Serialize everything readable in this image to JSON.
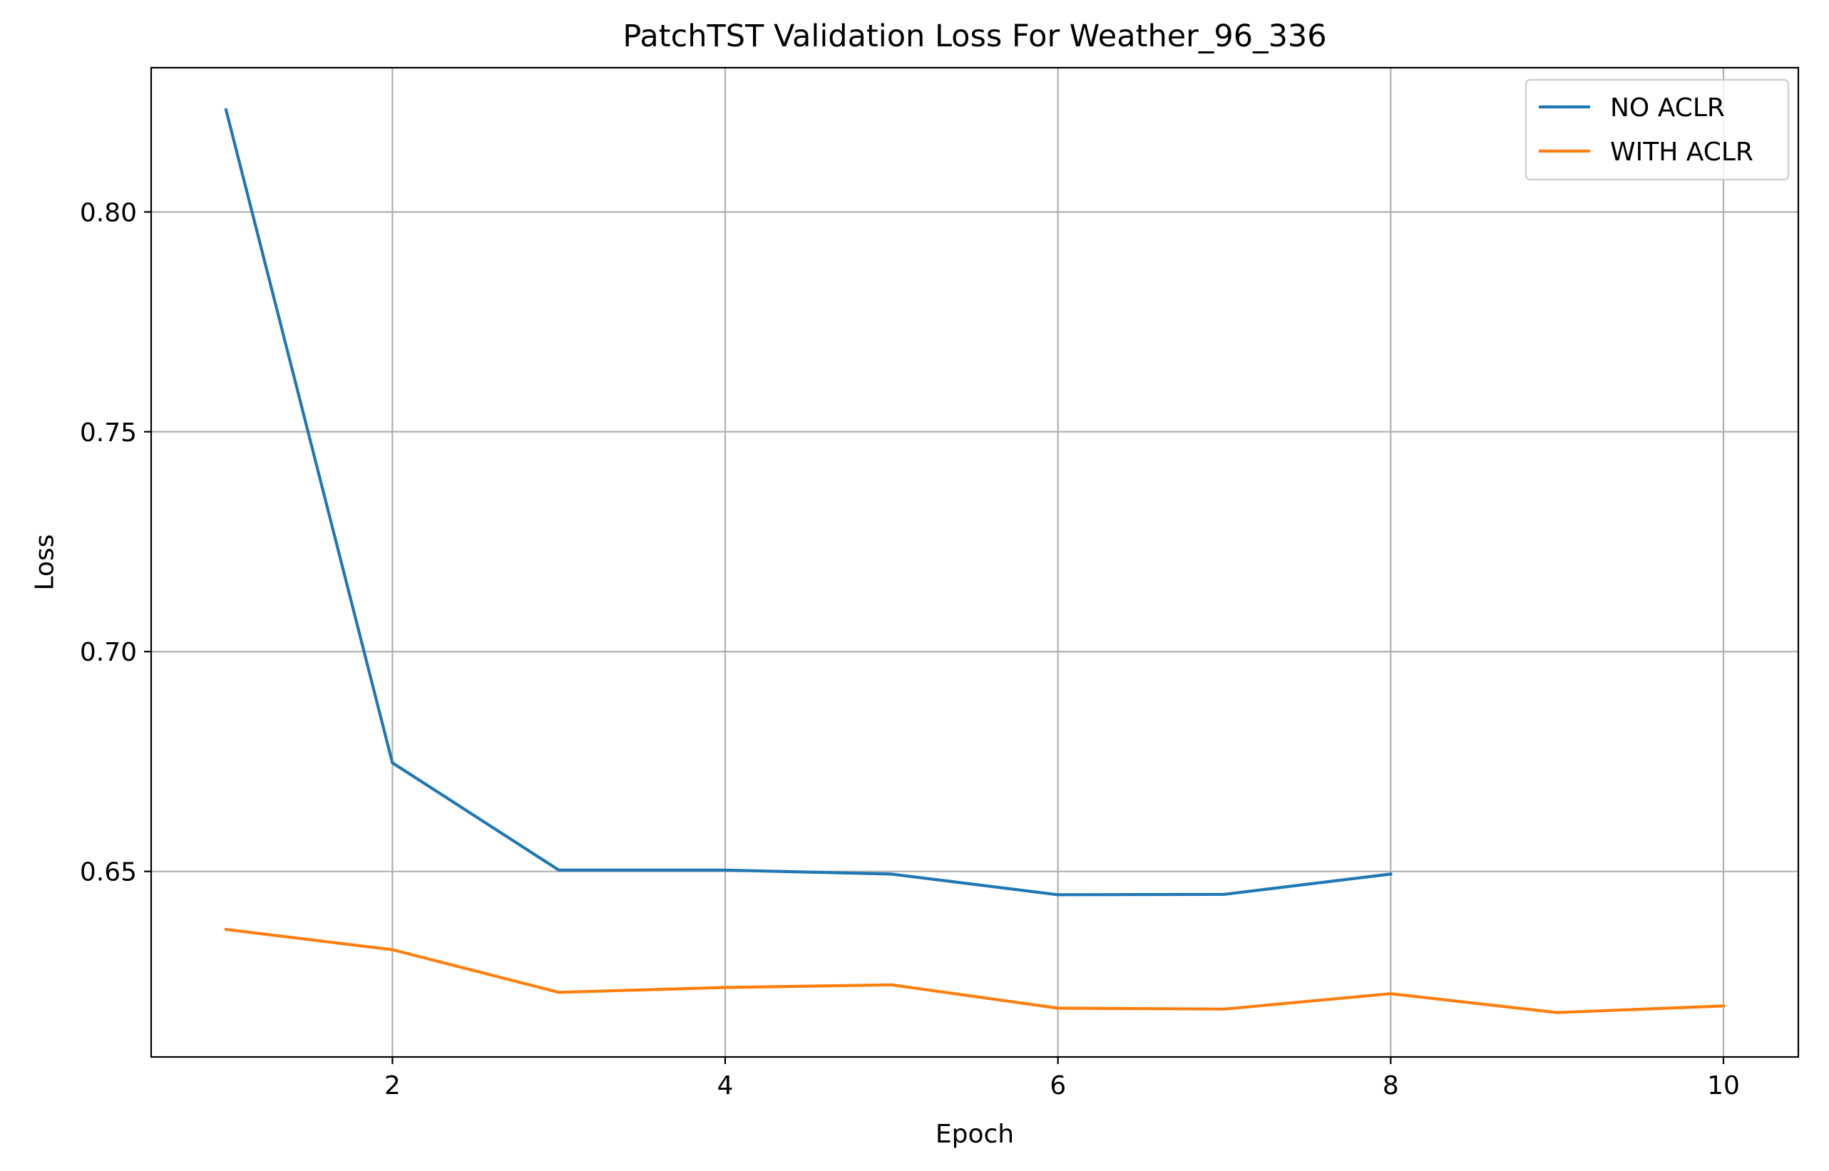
{
  "chart_data": {
    "type": "line",
    "title": "PatchTST Validation Loss For Weather_96_336",
    "xlabel": "Epoch",
    "ylabel": "Loss",
    "xlim": [
      0.55,
      10.45
    ],
    "ylim": [
      0.6078,
      0.8328
    ],
    "xticks": [
      2,
      4,
      6,
      8,
      10
    ],
    "xtick_labels": [
      "2",
      "4",
      "6",
      "8",
      "10"
    ],
    "yticks": [
      0.65,
      0.7,
      0.75,
      0.8
    ],
    "ytick_labels": [
      "0.65",
      "0.70",
      "0.75",
      "0.80"
    ],
    "grid": true,
    "legend_position": "top-right",
    "series": [
      {
        "name": "NO ACLR",
        "color": "#1f77b4",
        "x": [
          1,
          2,
          3,
          4,
          5,
          6,
          7,
          8
        ],
        "y": [
          0.8232,
          0.6747,
          0.6503,
          0.6503,
          0.6494,
          0.6447,
          0.6448,
          0.6494
        ]
      },
      {
        "name": "WITH ACLR",
        "color": "#ff7f0e",
        "x": [
          1,
          2,
          3,
          4,
          5,
          6,
          7,
          8,
          9,
          10
        ],
        "y": [
          0.6368,
          0.6322,
          0.6225,
          0.6236,
          0.6242,
          0.6189,
          0.6187,
          0.6222,
          0.6179,
          0.6194
        ]
      }
    ]
  }
}
